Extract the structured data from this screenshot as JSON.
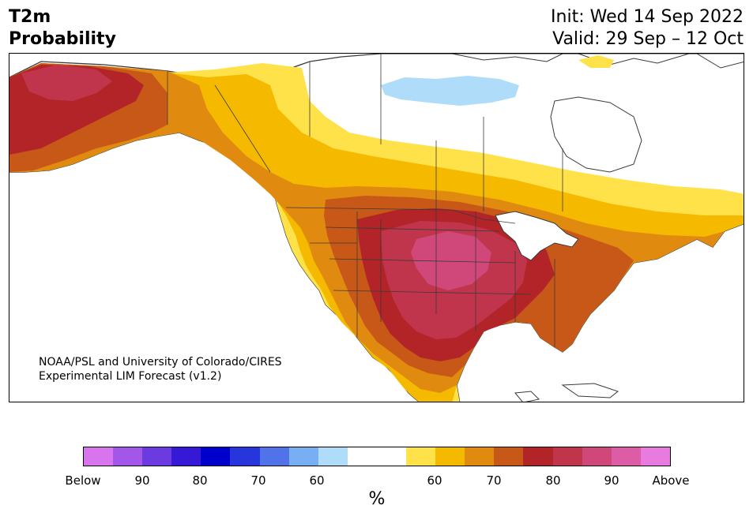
{
  "title": {
    "left_line1": "T2m",
    "left_line2": "Probability",
    "init": "Init: Wed 14 Sep 2022",
    "valid": "Valid: 29 Sep – 12 Oct"
  },
  "credit": {
    "line1": "NOAA/PSL and University of Colorado/CIRES",
    "line2": "Experimental LIM Forecast (v1.2)"
  },
  "colorbar": {
    "colors": [
      "#d874ec",
      "#a357e8",
      "#6b3be0",
      "#3519d6",
      "#0000cc",
      "#2636dc",
      "#5073ea",
      "#77aff2",
      "#aedcf9",
      "#ffffff",
      "#ffffff",
      "#ffe14a",
      "#f5b900",
      "#e08a10",
      "#c85818",
      "#b22428",
      "#c0354b",
      "#d0487a",
      "#dc5da6",
      "#e87ae0"
    ],
    "labels": [
      "Below",
      "90",
      "80",
      "70",
      "60",
      "60",
      "70",
      "80",
      "90",
      "Above"
    ],
    "unit": "%"
  },
  "map": {
    "region": "North America",
    "colors": {
      "ocean": "#ffffff",
      "neutral": "#ffffff",
      "yellow": "#ffe14a",
      "gold": "#f5b900",
      "orange": "#e08a10",
      "dark_orange": "#c85818",
      "red": "#b22428",
      "crimson": "#c0354b",
      "pink": "#d0487a",
      "light_blue": "#aedcf9",
      "coast": "#3a3a3a"
    }
  }
}
